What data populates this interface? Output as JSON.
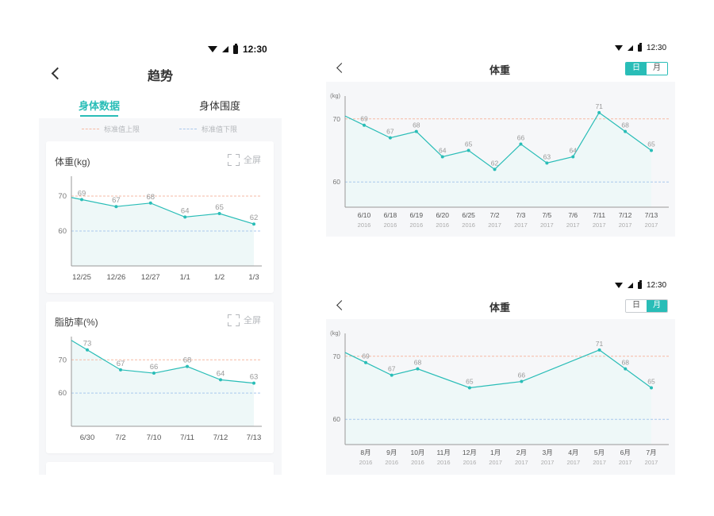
{
  "status_bar": {
    "time": "12:30"
  },
  "phone": {
    "title": "趋势",
    "tabs": [
      {
        "label": "身体数据"
      },
      {
        "label": "身体围度"
      }
    ],
    "legend": {
      "upper": "标准值上限",
      "lower": "标准值下限"
    },
    "fullscreen_label": "全屏",
    "cards": [
      {
        "title": "体重(kg)"
      },
      {
        "title": "脂肪率(%)"
      }
    ]
  },
  "landscape_day": {
    "title": "体重",
    "toggle": {
      "day": "日",
      "month": "月"
    }
  },
  "landscape_month": {
    "title": "体重",
    "toggle": {
      "day": "日",
      "month": "月"
    }
  },
  "colors": {
    "accent": "#29bdb7",
    "upper_limit": "#f6b9a4",
    "lower_limit": "#a9c7ec",
    "area": "#eef8f8"
  },
  "chart_data": [
    {
      "type": "area",
      "title": "体重(kg)",
      "categories": [
        "12/25",
        "12/26",
        "12/27",
        "1/1",
        "1/2",
        "1/3"
      ],
      "values": [
        69,
        67,
        68,
        64,
        65,
        62
      ],
      "yticks": [
        60,
        70
      ],
      "ylim": [
        50,
        75
      ],
      "reference_lines": {
        "upper": 70,
        "lower": 60
      }
    },
    {
      "type": "area",
      "title": "脂肪率(%)",
      "categories": [
        "6/30",
        "7/2",
        "7/10",
        "7/11",
        "7/12",
        "7/13"
      ],
      "values": [
        73,
        67,
        66,
        68,
        64,
        63
      ],
      "yticks": [
        60,
        70
      ],
      "ylim": [
        50,
        77
      ],
      "reference_lines": {
        "upper": 70,
        "lower": 60
      }
    },
    {
      "type": "area",
      "title": "体重",
      "ylabel": "(kg)",
      "categories": [
        "6/10",
        "6/18",
        "6/19",
        "6/20",
        "6/25",
        "7/2",
        "7/3",
        "7/5",
        "7/6",
        "7/11",
        "7/12",
        "7/13"
      ],
      "sublabels": [
        "2016",
        "2016",
        "2016",
        "2016",
        "2016",
        "2017",
        "2017",
        "2017",
        "2017",
        "2017",
        "2017",
        "2017"
      ],
      "values": [
        69,
        67,
        68,
        64,
        65,
        62,
        66,
        63,
        64,
        71,
        68,
        65
      ],
      "yticks": [
        60,
        70
      ],
      "ylim": [
        56,
        74
      ],
      "reference_lines": {
        "upper": 70,
        "lower": 60
      }
    },
    {
      "type": "area",
      "title": "体重",
      "ylabel": "(kg)",
      "categories": [
        "8月",
        "9月",
        "10月",
        "11月",
        "12月",
        "1月",
        "2月",
        "3月",
        "4月",
        "5月",
        "6月",
        "7月"
      ],
      "sublabels": [
        "2016",
        "2016",
        "2016",
        "2016",
        "2016",
        "2017",
        "2017",
        "2017",
        "2017",
        "2017",
        "2017",
        "2017"
      ],
      "values": [
        69,
        67,
        68,
        null,
        65,
        null,
        66,
        null,
        null,
        71,
        68,
        65
      ],
      "yticks": [
        60,
        70
      ],
      "ylim": [
        56,
        74
      ],
      "reference_lines": {
        "upper": 70,
        "lower": 60
      }
    }
  ]
}
